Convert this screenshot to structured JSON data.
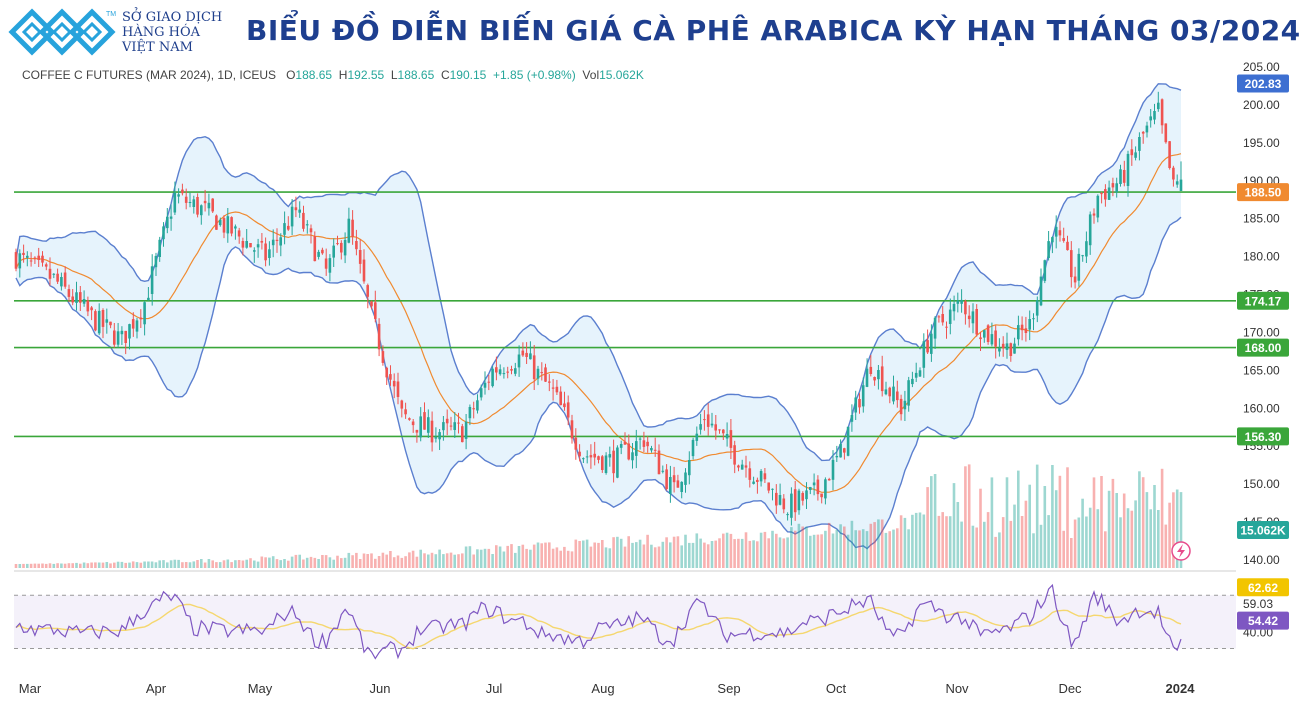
{
  "header": {
    "brand_lines": [
      "SỞ GIAO DỊCH",
      "HÀNG HÓA",
      "VIỆT NAM"
    ],
    "brand_mark": "TM",
    "title": "BIỂU ĐỒ DIỄN BIẾN GIÁ CÀ PHÊ ARABICA KỲ HẠN THÁNG 03/2024"
  },
  "legend": {
    "symbol": "COFFEE C FUTURES (MAR 2024), 1D, ICEUS",
    "o_label": "O",
    "o": "188.65",
    "h_label": "H",
    "h": "192.55",
    "l_label": "L",
    "l": "188.65",
    "c_label": "C",
    "c": "190.15",
    "change": "+1.85 (+0.98%)",
    "vol_label": "Vol",
    "vol": "15.062K"
  },
  "colors": {
    "up": "#26a69a",
    "down": "#ef5350",
    "band": "#5b7fcf",
    "ma": "#f08a30",
    "level": "#3aa63a",
    "rsi": "#7e57c2",
    "rsi_ma": "#f5d76e",
    "title": "#1e3f8f"
  },
  "chart_data": [
    {
      "type": "candlestick",
      "title": "COFFEE C FUTURES (MAR 2024), 1D, ICEUS",
      "ylim": [
        140,
        205
      ],
      "y_ticks": [
        "205.00",
        "200.00",
        "195.00",
        "190.00",
        "185.00",
        "180.00",
        "175.00",
        "170.00",
        "165.00",
        "160.00",
        "155.00",
        "150.00",
        "145.00",
        "140.00"
      ],
      "x_ticks": [
        "Mar",
        "Apr",
        "May",
        "Jun",
        "Jul",
        "Aug",
        "Sep",
        "Oct",
        "Nov",
        "Dec",
        "2024"
      ],
      "price_waypoints": [
        [
          0,
          180
        ],
        [
          10,
          177
        ],
        [
          20,
          172
        ],
        [
          28,
          169
        ],
        [
          34,
          174
        ],
        [
          42,
          188
        ],
        [
          50,
          186
        ],
        [
          58,
          183
        ],
        [
          66,
          180
        ],
        [
          74,
          186
        ],
        [
          82,
          178
        ],
        [
          88,
          184
        ],
        [
          94,
          172
        ],
        [
          102,
          159
        ],
        [
          110,
          157
        ],
        [
          118,
          157
        ],
        [
          126,
          165
        ],
        [
          134,
          167
        ],
        [
          142,
          162
        ],
        [
          150,
          154
        ],
        [
          158,
          153
        ],
        [
          166,
          156
        ],
        [
          174,
          149
        ],
        [
          182,
          159
        ],
        [
          190,
          154
        ],
        [
          198,
          150
        ],
        [
          204,
          147
        ],
        [
          212,
          149
        ],
        [
          218,
          154
        ],
        [
          226,
          166
        ],
        [
          234,
          160
        ],
        [
          242,
          170
        ],
        [
          250,
          174
        ],
        [
          256,
          170
        ],
        [
          262,
          168
        ],
        [
          268,
          171
        ],
        [
          274,
          184
        ],
        [
          280,
          177
        ],
        [
          286,
          188
        ],
        [
          292,
          190
        ],
        [
          298,
          196
        ],
        [
          302,
          199
        ],
        [
          306,
          189
        ],
        [
          308,
          190
        ]
      ],
      "horizontal_levels": [
        {
          "value": 188.5,
          "label": "188.50",
          "label_color": "#f08a30"
        },
        {
          "value": 174.17,
          "label": "174.17",
          "label_color": "#3aa63a"
        },
        {
          "value": 168.0,
          "label": "168.00",
          "label_color": "#3aa63a"
        },
        {
          "value": 156.3,
          "label": "156.30",
          "label_color": "#3aa63a"
        }
      ],
      "bollinger_upper_last": "202.83",
      "volume_last": "15.062K"
    },
    {
      "type": "line",
      "title": "RSI",
      "levels": [
        "62.62",
        "59.03",
        "54.42",
        "40.00"
      ]
    }
  ]
}
